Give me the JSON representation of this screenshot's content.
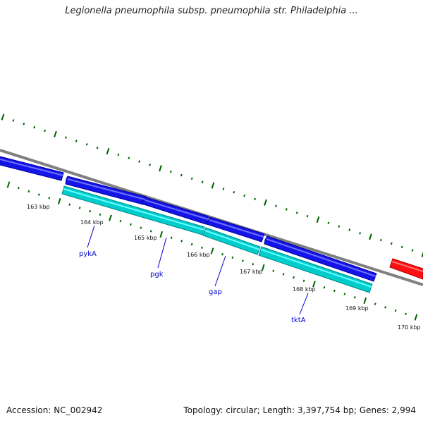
{
  "title": "Legionella pneumophila subsp. pneumophila str. Philadelphia ...",
  "colors": {
    "backbone": "#808080",
    "ticks": "#006400",
    "forward_cds": "#0000ee",
    "gene_track": "#00cccc",
    "highlight_feature": "#ff0000",
    "gene_label": "#0000cc"
  },
  "tick_labels": [
    "163 kbp",
    "164 kbp",
    "165 kbp",
    "166 kbp",
    "167 kbp",
    "168 kbp",
    "169 kbp",
    "170 kbp"
  ],
  "gene_labels": [
    "pykA",
    "pgk",
    "gap",
    "tktA"
  ],
  "footer": {
    "accession": "Accession: NC_002942",
    "topology": "Topology: circular; Length: 3,397,754 bp; Genes: 2,994"
  }
}
